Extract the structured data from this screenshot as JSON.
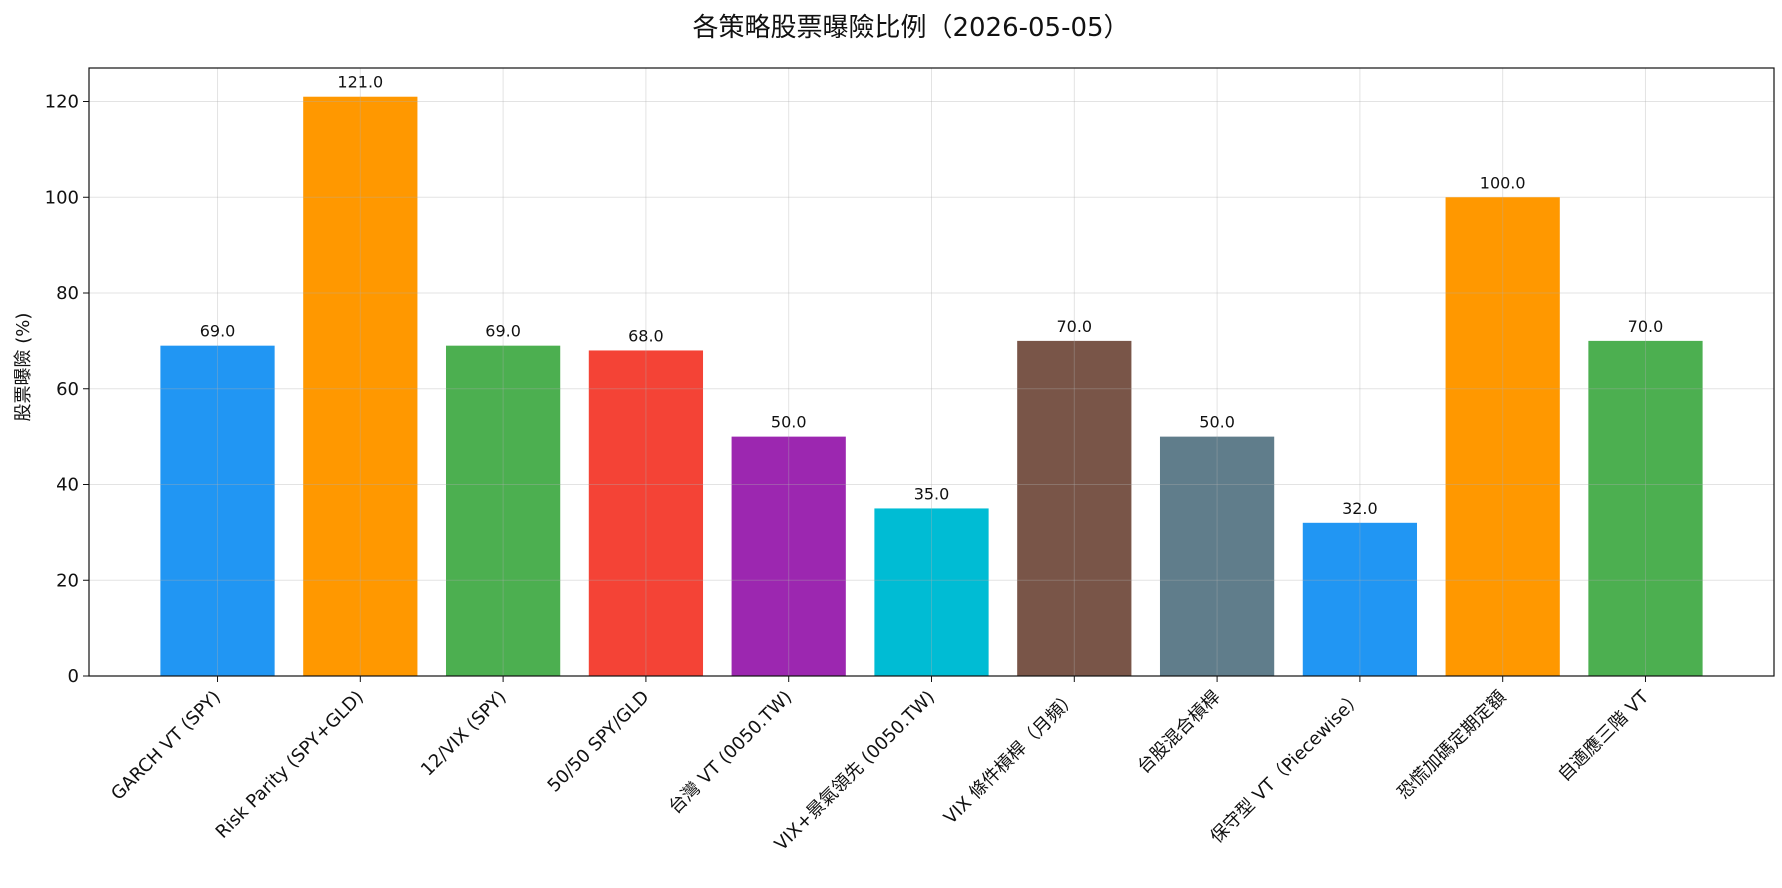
{
  "chart_data": {
    "type": "bar",
    "title": "各策略股票曝險比例（2026-05-05）",
    "xlabel": "",
    "ylabel": "股票曝險 (%)",
    "ylim": [
      0,
      127
    ],
    "yticks": [
      0,
      20,
      40,
      60,
      80,
      100,
      120
    ],
    "grid": true,
    "legend": "none",
    "categories": [
      "GARCH VT (SPY)",
      "Risk Parity (SPY+GLD)",
      "12/VIX (SPY)",
      "50/50 SPY/GLD",
      "台灣 VT (0050.TW)",
      "VIX+景氣領先 (0050.TW)",
      "VIX 條件槓桿（月頻）",
      "台股混合槓桿",
      "保守型 VT（Piecewise）",
      "恐慌加碼定期定額",
      "自適應三階 VT"
    ],
    "values": [
      69.0,
      121.0,
      69.0,
      68.0,
      50.0,
      35.0,
      70.0,
      50.0,
      32.0,
      100.0,
      70.0
    ],
    "value_labels": [
      "69.0",
      "121.0",
      "69.0",
      "68.0",
      "50.0",
      "35.0",
      "70.0",
      "50.0",
      "32.0",
      "100.0",
      "70.0"
    ],
    "colors": [
      "#2196F3",
      "#FF9800",
      "#4CAF50",
      "#F44336",
      "#9C27B0",
      "#00BCD4",
      "#795548",
      "#607D8B",
      "#2196F3",
      "#FF9800",
      "#4CAF50"
    ]
  }
}
